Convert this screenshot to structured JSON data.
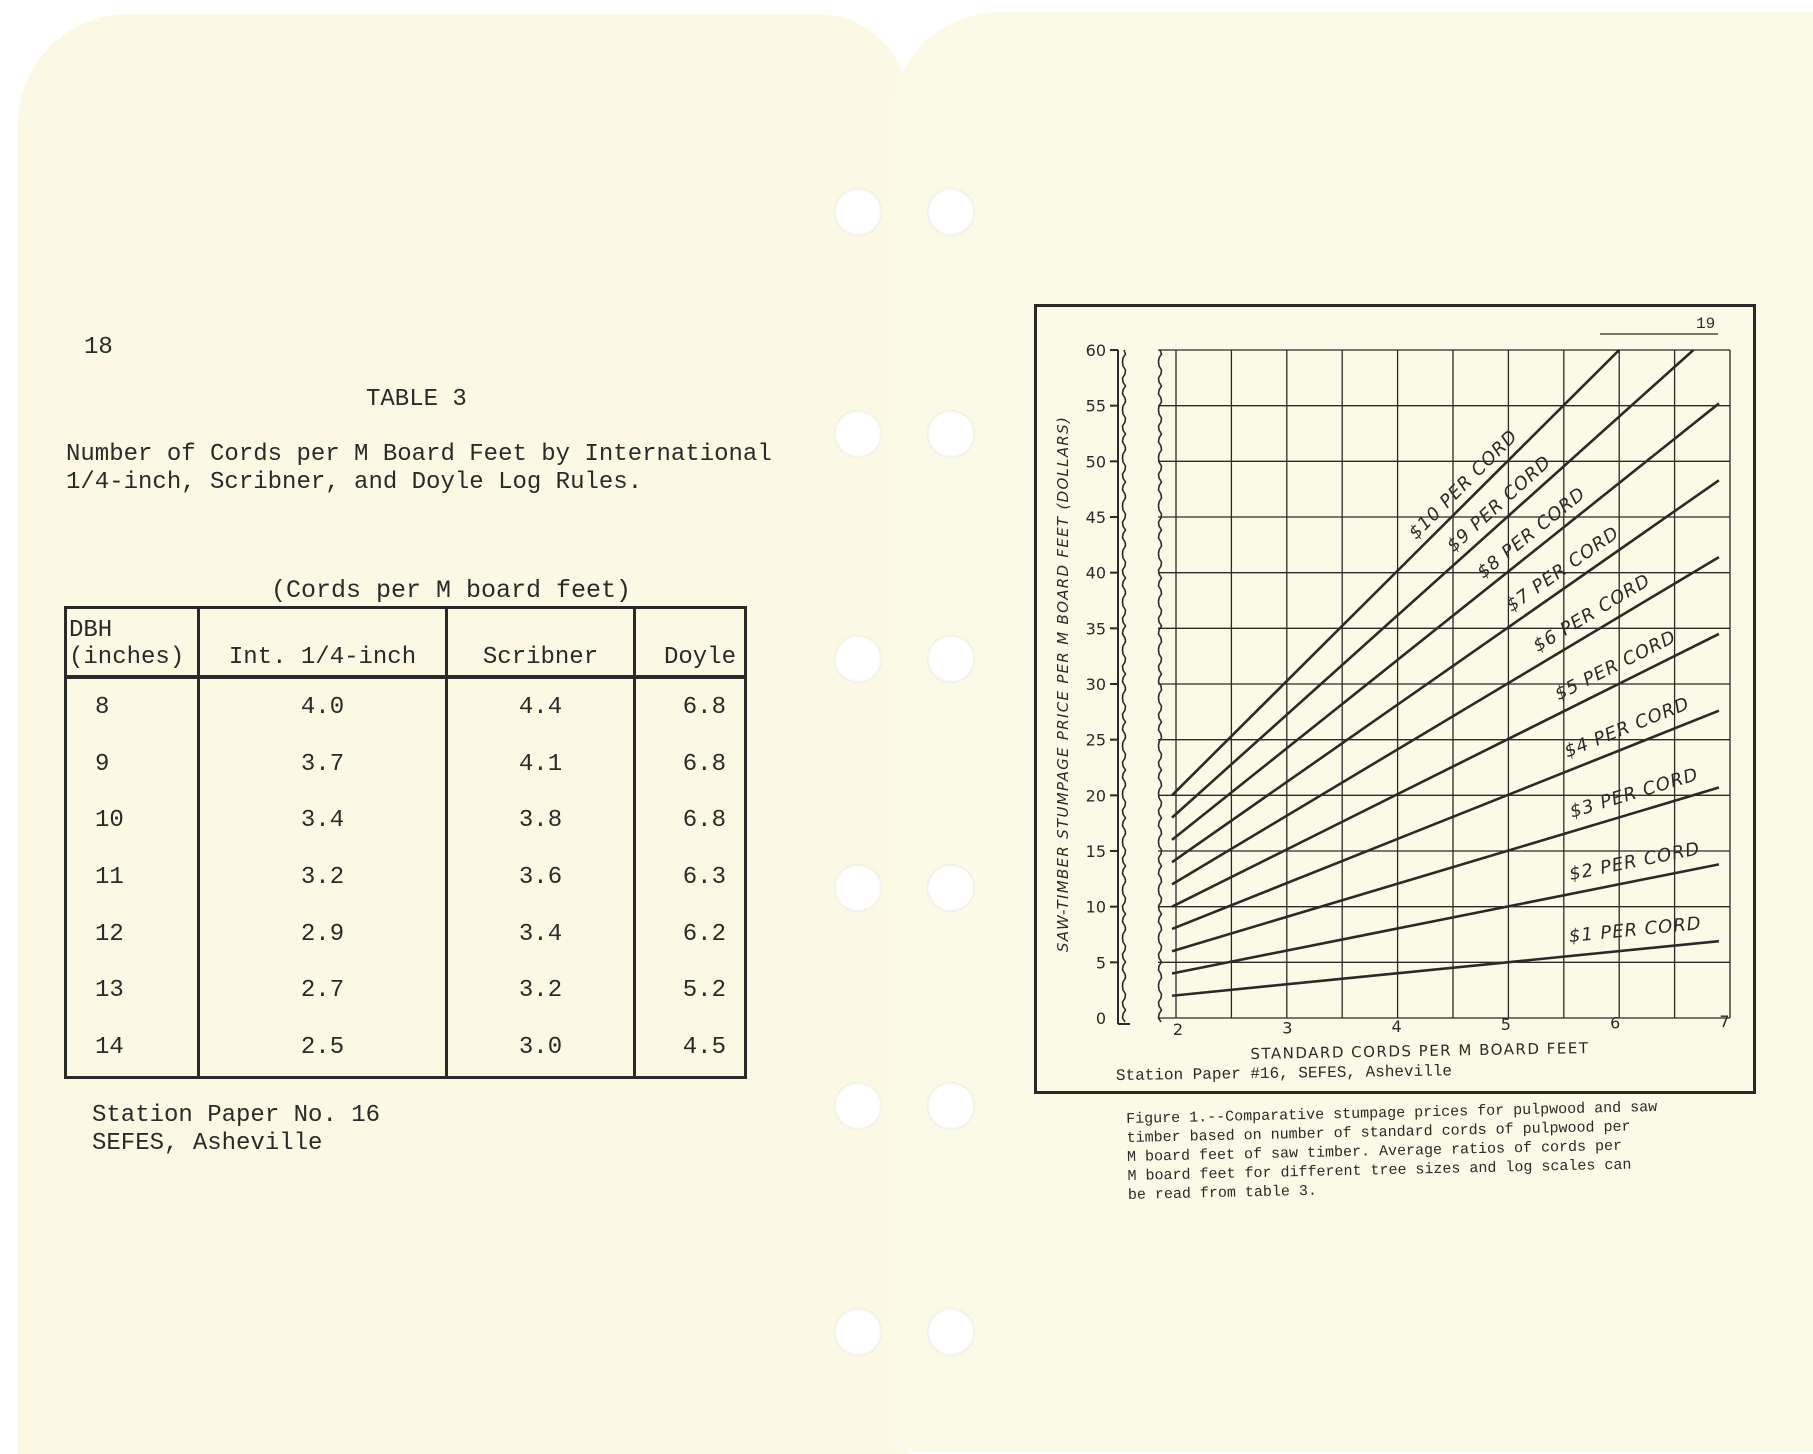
{
  "left_page": {
    "page_number": "18",
    "table_label": "TABLE 3",
    "table_title_line1": "Number of Cords per M Board Feet by International",
    "table_title_line2": "1/4-inch, Scribner, and Doyle Log Rules.",
    "units_note": "(Cords per M board feet)",
    "columns": [
      "DBH\n(inches)",
      "Int. 1/4-inch",
      "Scribner",
      "Doyle"
    ],
    "rows": [
      [
        "8",
        "4.0",
        "4.4",
        "6.8"
      ],
      [
        "9",
        "3.7",
        "4.1",
        "6.8"
      ],
      [
        "10",
        "3.4",
        "3.8",
        "6.8"
      ],
      [
        "11",
        "3.2",
        "3.6",
        "6.3"
      ],
      [
        "12",
        "2.9",
        "3.4",
        "6.2"
      ],
      [
        "13",
        "2.7",
        "3.2",
        "5.2"
      ],
      [
        "14",
        "2.5",
        "3.0",
        "4.5"
      ]
    ],
    "source_line1": "Station Paper No. 16",
    "source_line2": "SEFES, Asheville"
  },
  "right_page": {
    "page_number": "19",
    "chart_source": "Station Paper #16, SEFES, Asheville",
    "caption": "Figure 1.--Comparative stumpage prices for pulpwood and saw\n    timber based on number of standard cords of pulpwood per\n    M board feet of saw timber.  Average ratios of cords per\n    M board feet for different tree sizes and log scales can\n    be read from table 3."
  },
  "chart_data": {
    "type": "line",
    "xlabel": "STANDARD CORDS PER M BOARD FEET",
    "ylabel": "SAW-TIMBER STUMPAGE PRICE PER M BOARD FEET (DOLLARS)",
    "xlim": [
      2,
      7
    ],
    "ylim": [
      0,
      60
    ],
    "x_ticks": [
      "2",
      "3",
      "4",
      "5",
      "6",
      "7"
    ],
    "y_ticks": [
      "0",
      "5",
      "10",
      "15",
      "20",
      "25",
      "30",
      "35",
      "40",
      "45",
      "50",
      "55",
      "60"
    ],
    "grid": true,
    "y_axis_broken": true,
    "series": [
      {
        "name": "$1 PER CORD",
        "price_per_cord": 1,
        "points": [
          [
            2,
            2
          ],
          [
            6.9,
            6.9
          ]
        ]
      },
      {
        "name": "$2 PER CORD",
        "price_per_cord": 2,
        "points": [
          [
            2,
            4
          ],
          [
            6.9,
            13.8
          ]
        ]
      },
      {
        "name": "$3 PER CORD",
        "price_per_cord": 3,
        "points": [
          [
            2,
            6
          ],
          [
            6.9,
            20.7
          ]
        ]
      },
      {
        "name": "$4 PER CORD",
        "price_per_cord": 4,
        "points": [
          [
            2,
            8
          ],
          [
            6.9,
            27.6
          ]
        ]
      },
      {
        "name": "$5 PER CORD",
        "price_per_cord": 5,
        "points": [
          [
            2,
            10
          ],
          [
            6.9,
            34.5
          ]
        ]
      },
      {
        "name": "$6 PER CORD",
        "price_per_cord": 6,
        "points": [
          [
            2,
            12
          ],
          [
            6.9,
            41.4
          ]
        ]
      },
      {
        "name": "$7 PER CORD",
        "price_per_cord": 7,
        "points": [
          [
            2,
            14
          ],
          [
            6.9,
            48.3
          ]
        ]
      },
      {
        "name": "$8 PER CORD",
        "price_per_cord": 8,
        "points": [
          [
            2,
            16
          ],
          [
            6.9,
            55.2
          ]
        ]
      },
      {
        "name": "$9 PER CORD",
        "price_per_cord": 9,
        "points": [
          [
            2,
            18
          ],
          [
            6.67,
            60
          ]
        ]
      },
      {
        "name": "$10 PER CORD",
        "price_per_cord": 10,
        "points": [
          [
            2,
            20
          ],
          [
            6,
            60
          ]
        ]
      }
    ],
    "line_color": "#2a2a28"
  }
}
